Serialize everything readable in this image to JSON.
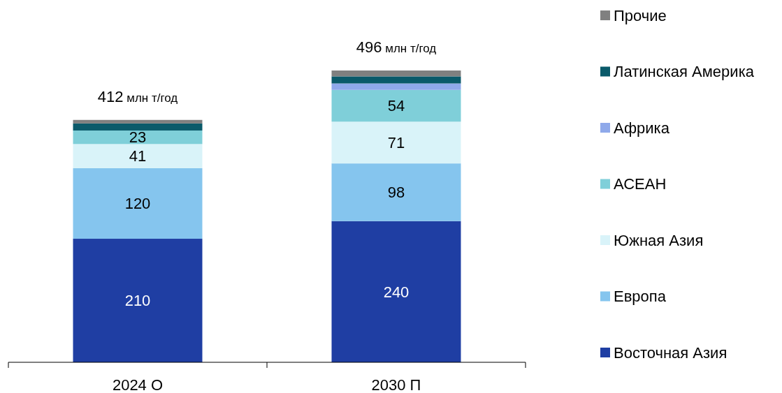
{
  "chart_data": {
    "type": "bar",
    "stacked": true,
    "categories": [
      "2024 О",
      "2030 П"
    ],
    "legend": "right",
    "series": [
      {
        "name": "Восточная Азия",
        "color": "#1f3ea3",
        "values": [
          210,
          240
        ],
        "value_labels": [
          "210",
          "240"
        ]
      },
      {
        "name": "Европа",
        "color": "#85c5ee",
        "values": [
          120,
          98
        ],
        "value_labels": [
          "120",
          "98"
        ]
      },
      {
        "name": "Южная Азия",
        "color": "#d9f3f9",
        "values": [
          41,
          71
        ],
        "value_labels": [
          "41",
          "71"
        ]
      },
      {
        "name": "АСЕАН",
        "color": "#7fcfd9",
        "values": [
          23,
          54
        ],
        "value_labels": [
          "23",
          "54"
        ]
      },
      {
        "name": "Африка",
        "color": "#8fa9ea",
        "values": [
          0,
          11
        ]
      },
      {
        "name": "Латинская Америка",
        "color": "#0a5a6a",
        "values": [
          12,
          12
        ]
      },
      {
        "name": "Прочие",
        "color": "#808080",
        "values": [
          6,
          10
        ]
      }
    ],
    "totals": [
      "412 млн т/год",
      "496 млн т/год"
    ]
  }
}
